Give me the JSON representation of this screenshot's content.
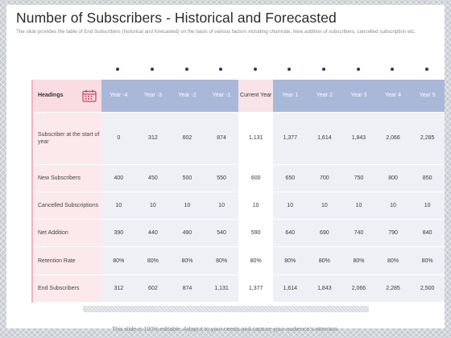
{
  "slide": {
    "title": "Number of Subscribers - Historical and Forecasted",
    "subtitle": "The slide provides the table of End Subscribers (historical and forecasted) on the basis of various factors including churnrate, New addition of subscribers, cancelled subscription etc.",
    "footer": "This slide is 100% editable. Adapt it to your needs and capture your audience's attention."
  },
  "table": {
    "headings_label": "Headings",
    "heading_icon": "calendar-icon",
    "columns": [
      {
        "label": "Year -4"
      },
      {
        "label": "Year -3"
      },
      {
        "label": "Year -2"
      },
      {
        "label": "Year -1"
      },
      {
        "label": "Current Year"
      },
      {
        "label": "Year 1"
      },
      {
        "label": "Year 2"
      },
      {
        "label": "Year 3"
      },
      {
        "label": "Year 4"
      },
      {
        "label": "Year 5"
      }
    ],
    "rows": [
      {
        "label": "Subscriber at the start of year",
        "values": [
          "0",
          "312",
          "602",
          "874",
          "1,131",
          "1,377",
          "1,614",
          "1,843",
          "2,066",
          "2,285"
        ]
      },
      {
        "label": "New Subscribers",
        "values": [
          "400",
          "450",
          "500",
          "550",
          "600",
          "650",
          "700",
          "750",
          "800",
          "850"
        ]
      },
      {
        "label": "Cancelled Subscriptions",
        "values": [
          "10",
          "10",
          "10",
          "10",
          "10",
          "10",
          "10",
          "10",
          "10",
          "10"
        ]
      },
      {
        "label": "Net Addition",
        "values": [
          "390",
          "440",
          "490",
          "540",
          "590",
          "640",
          "690",
          "740",
          "790",
          "840"
        ]
      },
      {
        "label": "Retention Rate",
        "values": [
          "80%",
          "80%",
          "80%",
          "80%",
          "80%",
          "80%",
          "80%",
          "80%",
          "80%",
          "80%"
        ]
      },
      {
        "label": "End Subscribers",
        "values": [
          "312",
          "602",
          "874",
          "1,131",
          "1,377",
          "1,614",
          "1,843",
          "2,066",
          "2,285",
          "2,500"
        ]
      }
    ]
  },
  "colors": {
    "header_blue": "#a9b8d8",
    "label_pink": "#fbe9ec",
    "dot_navy": "#2d3a63"
  }
}
